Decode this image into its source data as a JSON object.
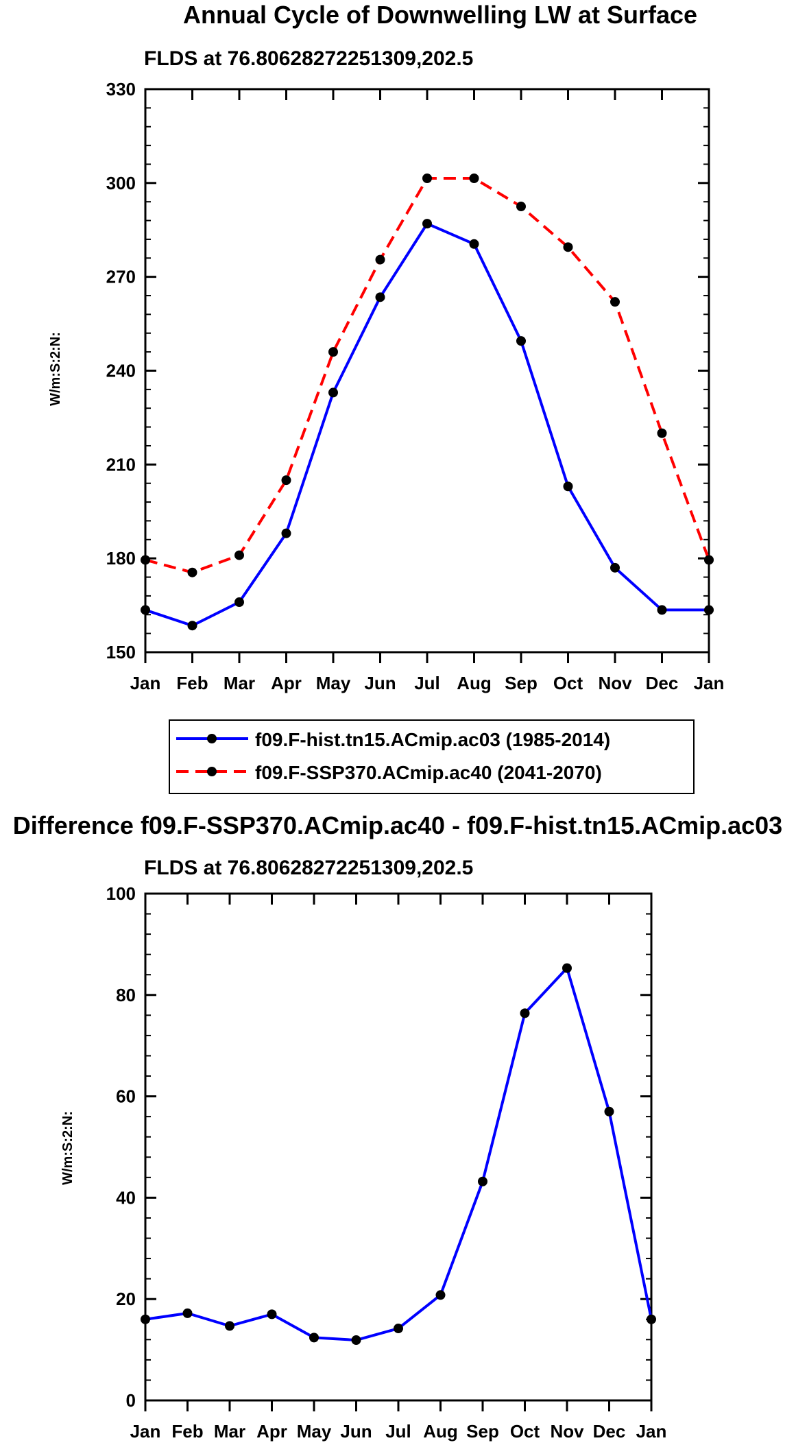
{
  "colors": {
    "hist": "#0000ff",
    "ssp": "#ff0000",
    "marker": "#000000"
  },
  "chart_data": [
    {
      "type": "line",
      "title": "Annual Cycle of Downwelling LW at Surface",
      "subtitle": "FLDS at 76.80628272251309,202.5",
      "ylabel": "W/m:S:2:N:",
      "xlabel": "",
      "categories": [
        "Jan",
        "Feb",
        "Mar",
        "Apr",
        "May",
        "Jun",
        "Jul",
        "Aug",
        "Sep",
        "Oct",
        "Nov",
        "Dec",
        "Jan"
      ],
      "ylim": [
        150,
        330
      ],
      "yticks": [
        150,
        180,
        210,
        240,
        270,
        300,
        330
      ],
      "series": [
        {
          "name": "f09.F-hist.tn15.ACmip.ac03 (1985-2014)",
          "style": "solid",
          "color": "#0000ff",
          "values": [
            163.5,
            158.5,
            166,
            188,
            233,
            263.5,
            287,
            280.5,
            249.5,
            203,
            177,
            163.5,
            163.5
          ]
        },
        {
          "name": "f09.F-SSP370.ACmip.ac40 (2041-2070)",
          "style": "dashed",
          "color": "#ff0000",
          "values": [
            179.5,
            175.5,
            181,
            205,
            246,
            275.5,
            301.5,
            301.5,
            292.5,
            279.5,
            262,
            220,
            179.5
          ]
        }
      ],
      "legend": {
        "position": "bottom",
        "entries": [
          "f09.F-hist.tn15.ACmip.ac03 (1985-2014)",
          "f09.F-SSP370.ACmip.ac40 (2041-2070)"
        ]
      }
    },
    {
      "type": "line",
      "title": "Difference f09.F-SSP370.ACmip.ac40 - f09.F-hist.tn15.ACmip.ac03",
      "subtitle": "FLDS at 76.80628272251309,202.5",
      "ylabel": "W/m:S:2:N:",
      "xlabel": "",
      "categories": [
        "Jan",
        "Feb",
        "Mar",
        "Apr",
        "May",
        "Jun",
        "Jul",
        "Aug",
        "Sep",
        "Oct",
        "Nov",
        "Dec",
        "Jan"
      ],
      "ylim": [
        0,
        100
      ],
      "yticks": [
        0,
        20,
        40,
        60,
        80,
        100
      ],
      "series": [
        {
          "name": "Difference",
          "style": "solid",
          "color": "#0000ff",
          "values": [
            16,
            17.2,
            14.7,
            17,
            12.4,
            11.9,
            14.2,
            20.8,
            43.2,
            76.4,
            85.3,
            57,
            16
          ]
        }
      ]
    }
  ]
}
